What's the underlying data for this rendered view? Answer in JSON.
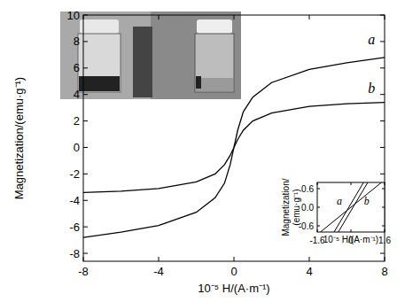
{
  "chart_data": [
    {
      "type": "line",
      "xlabel": "10⁻⁵ H/(A·m⁻¹)",
      "ylabel": "Magnetization/(emu·g⁻¹)",
      "x": [
        -8,
        -6,
        -4,
        -2,
        -1,
        -0.5,
        -0.2,
        0,
        0.2,
        0.5,
        1,
        2,
        4,
        6,
        8
      ],
      "series": [
        {
          "color": "#000000",
          "values": [
            -6.8,
            -6.4,
            -5.9,
            -4.9,
            -3.8,
            -2.7,
            -1.3,
            0,
            1.3,
            2.7,
            3.8,
            4.9,
            5.9,
            6.4,
            6.8
          ]
        },
        {
          "color": "#000000",
          "values": [
            -3.4,
            -3.3,
            -3.1,
            -2.6,
            -2.0,
            -1.3,
            -0.6,
            0,
            0.6,
            1.3,
            2.0,
            2.6,
            3.1,
            3.3,
            3.4
          ]
        }
      ],
      "xlim": [
        -8,
        8
      ],
      "ylim": [
        -8.6,
        10
      ],
      "xticks": [
        -8,
        -4,
        0,
        4,
        8
      ],
      "yticks": [
        -8,
        -6,
        -4,
        -2,
        0,
        2,
        4,
        6,
        8,
        10
      ],
      "annotations": [
        {
          "text": "a",
          "x": 7.3,
          "y": 7.8
        },
        {
          "text": "b",
          "x": 7.3,
          "y": 4.1
        }
      ]
    },
    {
      "type": "line",
      "xlabel": "10⁻⁵ H/(A·m⁻¹)",
      "ylabel": [
        "Magnetization/",
        "(emu·g⁻¹)"
      ],
      "series": [
        {
          "color": "#000000",
          "x": [
            0.6,
            -0.8,
            -0.7,
            -0.6,
            0.8
          ],
          "values": [
            0.8,
            -0.8,
            null,
            -0.8,
            0.8
          ]
        },
        {
          "color": "#000000",
          "x": [
            -1.45,
            1.45
          ],
          "values": [
            -0.8,
            0.8
          ]
        }
      ],
      "xlim": [
        -1.6,
        1.6
      ],
      "ylim": [
        -0.8,
        0.8
      ],
      "xticks": [
        -1.6,
        0,
        1.6
      ],
      "yticks": [
        -0.6,
        {
          "value": 0,
          "label": "0.0"
        },
        0.6
      ],
      "annotations": [
        {
          "text": "a",
          "x": -0.55,
          "y": 0.08
        },
        {
          "text": "b",
          "x": 0.75,
          "y": 0.08
        }
      ]
    }
  ]
}
